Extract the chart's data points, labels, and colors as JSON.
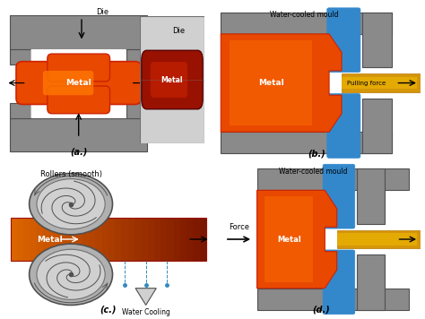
{
  "bg_color": "#f0f0f0",
  "bg_white": "#ffffff",
  "gray_die": "#8a8a8a",
  "gray_mid": "#707070",
  "gray_dark": "#505050",
  "gray_light": "#b0b0b0",
  "gray_lighter": "#d0d0d0",
  "metal_orange": "#e84800",
  "metal_orange_bright": "#ff7700",
  "metal_orange_mid": "#dd5500",
  "metal_dark_red": "#991100",
  "metal_red": "#cc2200",
  "gold_dark": "#b87800",
  "gold_mid": "#d4960a",
  "gold_bright": "#f0b800",
  "blue_cool": "#3388cc",
  "blue_light": "#66aadd",
  "label_a": "(a.)",
  "label_b": "(b.)",
  "label_c": "(c.)",
  "label_d": "(d.)",
  "text_die": "Die",
  "text_metal": "Metal",
  "text_pulling": "Pulling force",
  "text_force": "Force",
  "text_rollers": "Rollers (smooth)",
  "text_water": "Water Cooling",
  "text_watercooled": "Water-cooled mould"
}
